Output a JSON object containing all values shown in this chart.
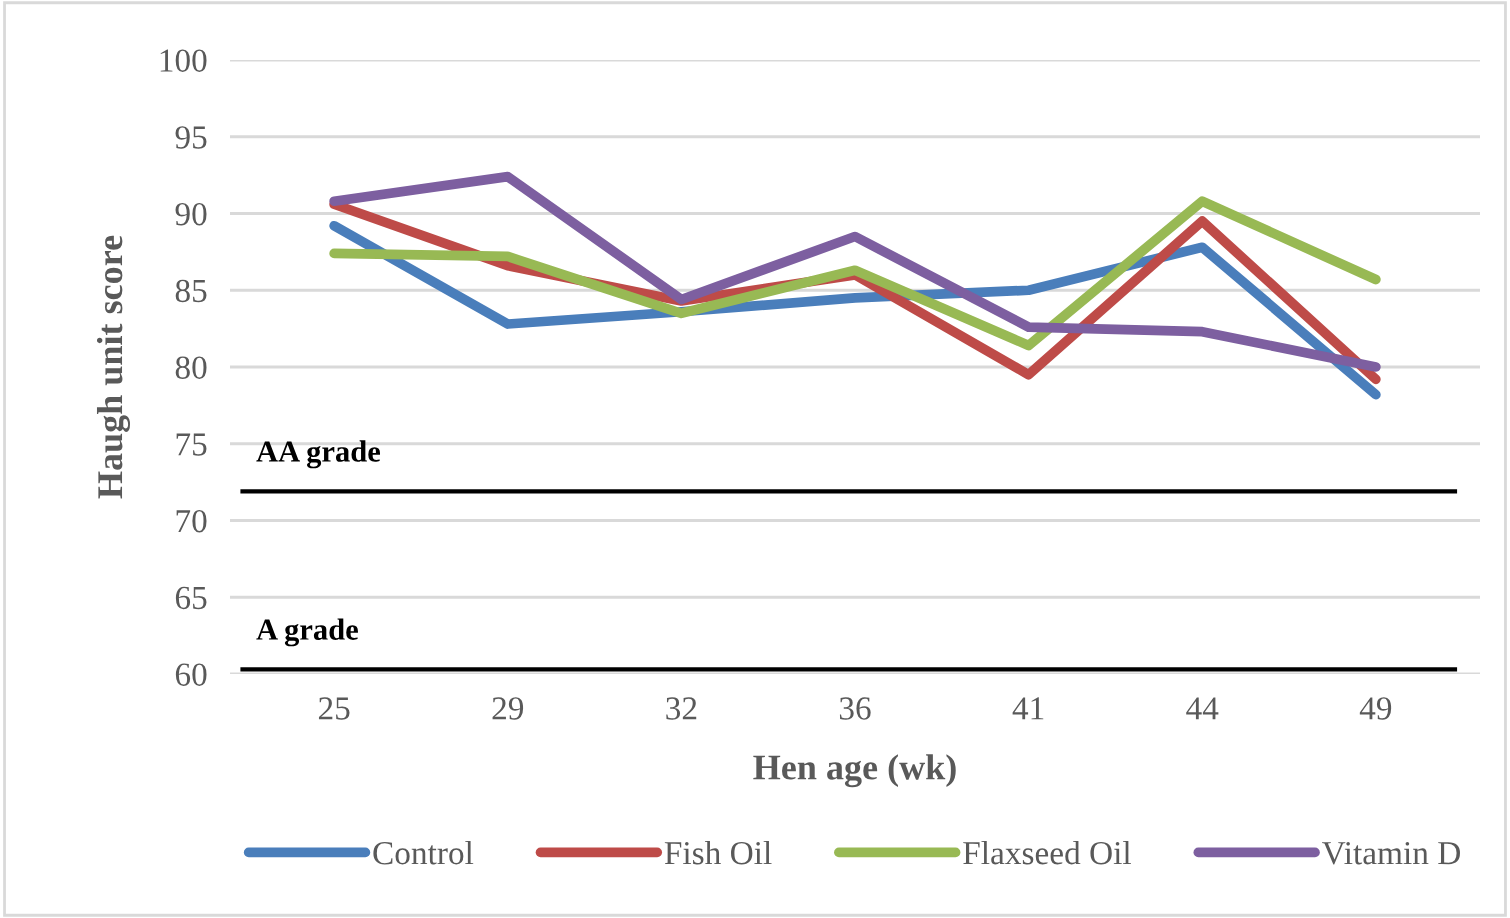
{
  "chart_data": {
    "type": "line",
    "xlabel": "Hen age (wk)",
    "ylabel": "Haugh unit score",
    "categories": [
      "25",
      "29",
      "32",
      "36",
      "41",
      "44",
      "49"
    ],
    "series": [
      {
        "name": "Control",
        "color": "#4a7ebb",
        "values": [
          89.2,
          82.8,
          83.6,
          84.5,
          85.0,
          87.8,
          78.2
        ]
      },
      {
        "name": "Fish Oil",
        "color": "#be4b48",
        "values": [
          90.6,
          86.6,
          84.3,
          86.0,
          79.5,
          89.5,
          79.2
        ]
      },
      {
        "name": "Flaxseed Oil",
        "color": "#98b954",
        "values": [
          87.4,
          87.2,
          83.5,
          86.3,
          81.4,
          90.8,
          85.7
        ]
      },
      {
        "name": "Vitamin D",
        "color": "#7d5fa0",
        "values": [
          90.8,
          92.4,
          84.4,
          88.5,
          82.6,
          82.3,
          80.0
        ]
      }
    ],
    "ylim": [
      60,
      100
    ],
    "yticks": [
      60,
      65,
      70,
      75,
      80,
      85,
      90,
      95,
      100
    ],
    "ref_lines": [
      {
        "axis": "y",
        "value": 71.9,
        "label": "AA grade",
        "color": "#000000"
      },
      {
        "axis": "y",
        "value": 60.3,
        "label": "A grade",
        "color": "#000000"
      }
    ],
    "grid": "y",
    "legend": "bottom",
    "marker": "none",
    "line_style": "solid"
  }
}
